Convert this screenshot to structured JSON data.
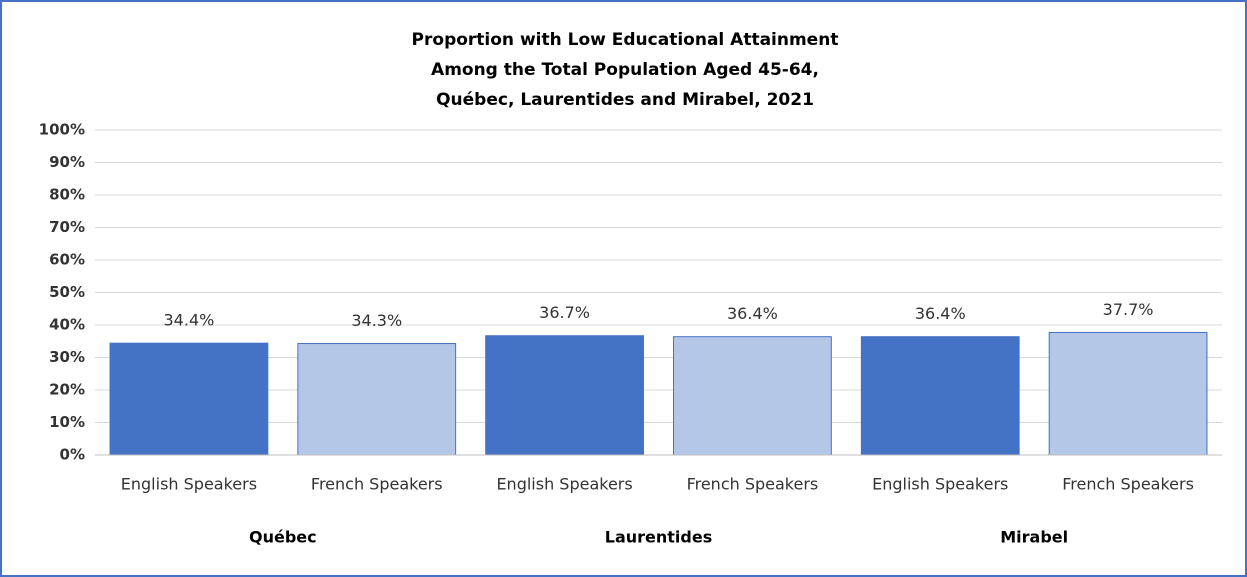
{
  "chart_data": {
    "type": "bar",
    "title": [
      "Proportion with Low Educational Attainment",
      "Among the Total Population Aged 45-64,",
      "Québec, Laurentides and Mirabel, 2021"
    ],
    "categories": [
      "English Speakers",
      "French Speakers",
      "English Speakers",
      "French Speakers",
      "English Speakers",
      "French Speakers"
    ],
    "groups": [
      "Québec",
      "Laurentides",
      "Mirabel"
    ],
    "values": [
      34.4,
      34.3,
      36.7,
      36.4,
      36.4,
      37.7
    ],
    "value_labels": [
      "34.4%",
      "34.3%",
      "36.7%",
      "36.4%",
      "36.4%",
      "37.7%"
    ],
    "colors": [
      "#4472c4",
      "#b4c7e7",
      "#4472c4",
      "#b4c7e7",
      "#4472c4",
      "#b4c7e7"
    ],
    "ylim": [
      0,
      100
    ],
    "yticks": [
      {
        "value": 0,
        "label": "0%"
      },
      {
        "value": 10,
        "label": "10%"
      },
      {
        "value": 20,
        "label": "20%"
      },
      {
        "value": 30,
        "label": "30%"
      },
      {
        "value": 40,
        "label": "40%"
      },
      {
        "value": 50,
        "label": "50%"
      },
      {
        "value": 60,
        "label": "60%"
      },
      {
        "value": 70,
        "label": "70%"
      },
      {
        "value": 80,
        "label": "80%"
      },
      {
        "value": 90,
        "label": "90%"
      },
      {
        "value": 100,
        "label": "100%"
      }
    ],
    "grid": true
  }
}
